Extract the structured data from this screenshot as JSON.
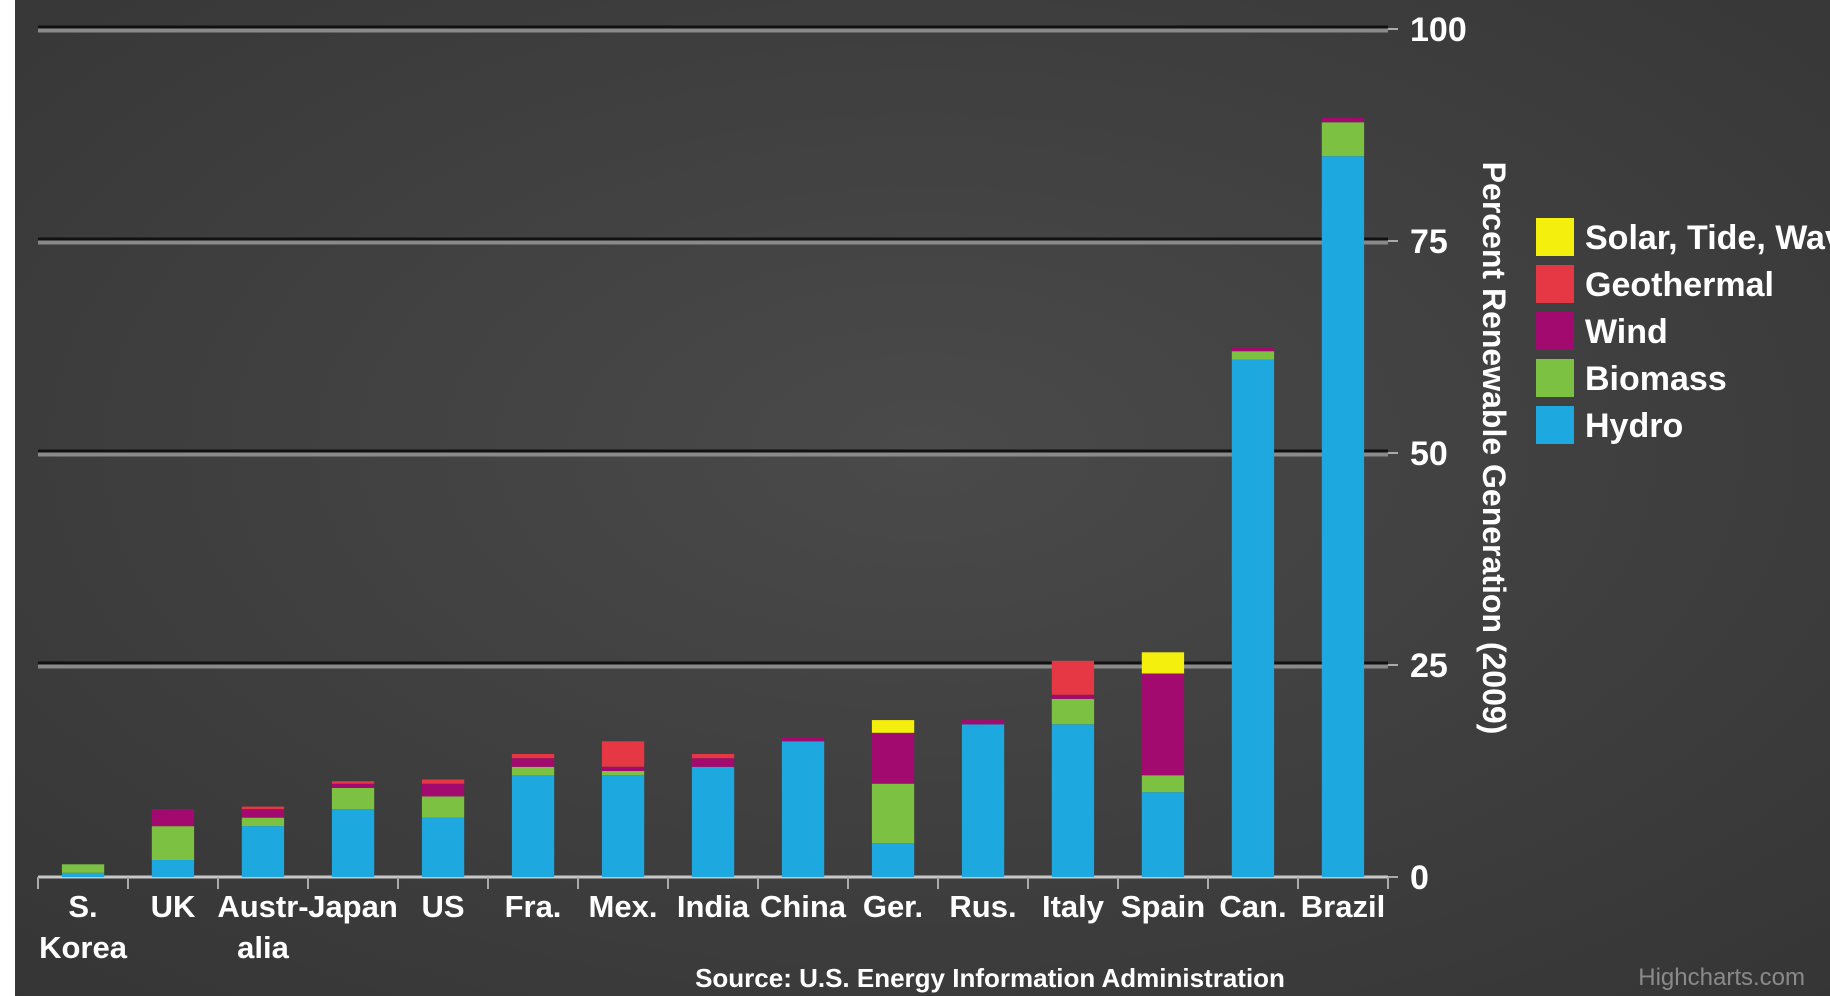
{
  "chart_data": {
    "type": "bar",
    "stacked": true,
    "categories": [
      "S.\nKorea",
      "UK",
      "Austr-\nalia",
      "Japan",
      "US",
      "Fra.",
      "Mex.",
      "India",
      "China",
      "Ger.",
      "Rus.",
      "Italy",
      "Spain",
      "Can.",
      "Brazil"
    ],
    "series": [
      {
        "name": "Hydro",
        "color": "#1ea8e0",
        "values": [
          0.5,
          2,
          6,
          8,
          7,
          12,
          12,
          13,
          16,
          4,
          18,
          18,
          10,
          61,
          85
        ]
      },
      {
        "name": "Biomass",
        "color": "#7cc142",
        "values": [
          1,
          4,
          1,
          2.5,
          2.5,
          1,
          0.5,
          0,
          0,
          7,
          0,
          3,
          2,
          1,
          4
        ]
      },
      {
        "name": "Wind",
        "color": "#a30a6f",
        "values": [
          0,
          2,
          1,
          0.5,
          1.5,
          1,
          0.5,
          1,
          0.5,
          6,
          0.5,
          0.5,
          12,
          0.5,
          0.5
        ]
      },
      {
        "name": "Geothermal",
        "color": "#e53844",
        "values": [
          0,
          0,
          0.3,
          0.3,
          0.5,
          0.5,
          3,
          0.5,
          0,
          0,
          0,
          4,
          0,
          0,
          0
        ]
      },
      {
        "name": "Solar, Tide, Wave",
        "color": "#f5ef0e",
        "values": [
          0,
          0,
          0,
          0,
          0,
          0,
          0,
          0,
          0,
          1.5,
          0,
          0,
          2.5,
          0,
          0
        ]
      }
    ],
    "legend_order": [
      "Solar, Tide, Wave",
      "Geothermal",
      "Wind",
      "Biomass",
      "Hydro"
    ],
    "ylabel": "Percent Renewable Generation (2009)",
    "ylim": [
      0,
      100
    ],
    "yticks": [
      0,
      25,
      50,
      75,
      100
    ],
    "grid": true,
    "legend_position": "right",
    "axis_position": "right",
    "source": "Source:   U.S. Energy Information Administration",
    "credit": "Highcharts.com"
  }
}
